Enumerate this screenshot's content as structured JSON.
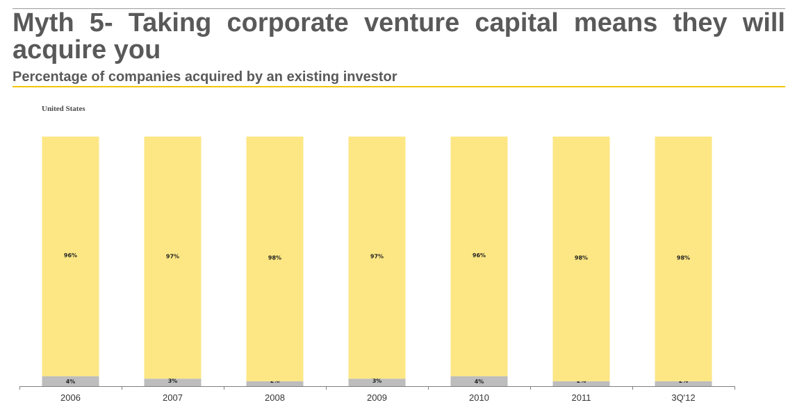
{
  "slide": {
    "title": "Myth 5- Taking corporate venture capital means they will acquire you",
    "subtitle": "Percentage of companies acquired by an existing investor",
    "accent_color": "#f2c500"
  },
  "chart_data": {
    "type": "bar",
    "stacked": true,
    "title": "United States",
    "categories": [
      "2006",
      "2007",
      "2008",
      "2009",
      "2010",
      "2011",
      "3Q'12"
    ],
    "series": [
      {
        "values": [
          4,
          3,
          2,
          3,
          4,
          2,
          2
        ],
        "labels": [
          "4%",
          "3%",
          "2%",
          "3%",
          "4%",
          "2%",
          "2%"
        ],
        "color": "#bdbdbd"
      },
      {
        "values": [
          96,
          97,
          98,
          97,
          96,
          98,
          98
        ],
        "labels": [
          "96%",
          "97%",
          "98%",
          "97%",
          "96%",
          "98%",
          "98%"
        ],
        "color": "#fde784"
      }
    ],
    "ylim": [
      0,
      100
    ],
    "grid": false,
    "legend": "none"
  }
}
